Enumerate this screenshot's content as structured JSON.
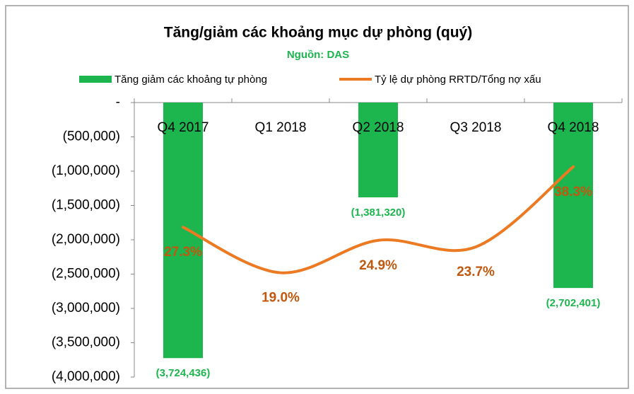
{
  "chart_data": {
    "type": "bar",
    "title": "Tăng/giảm các khoảng mục dự phòng (quý)",
    "subtitle": "Nguồn: DAS",
    "categories": [
      "Q4 2017",
      "Q1 2018",
      "Q2 2018",
      "Q3 2018",
      "Q4 2018"
    ],
    "series": [
      {
        "name": "Tăng giảm các khoảng tự phòng",
        "type": "bar",
        "color": "#1db54e",
        "values": [
          -3724436,
          0,
          -1381320,
          0,
          -2702401
        ],
        "value_labels": [
          "(3,724,436)",
          null,
          "(1,381,320)",
          null,
          "(2,702,401)"
        ]
      },
      {
        "name": "Tỷ lệ dự phòng RRTD/Tổng nợ xấu",
        "type": "line",
        "axis": "y2",
        "color": "#ec7a22",
        "values": [
          27.3,
          19.0,
          24.9,
          23.7,
          38.3
        ],
        "value_labels": [
          "27.3%",
          "19.0%",
          "24.9%",
          "23.7%",
          "38.3%"
        ]
      }
    ],
    "ylim": [
      -4000000,
      0
    ],
    "yticks": [
      {
        "value": 0,
        "label": "-"
      },
      {
        "value": -500000,
        "label": "(500,000)"
      },
      {
        "value": -1000000,
        "label": "(1,000,000)"
      },
      {
        "value": -1500000,
        "label": "(1,500,000)"
      },
      {
        "value": -2000000,
        "label": "(2,000,000)"
      },
      {
        "value": -2500000,
        "label": "(2,500,000)"
      },
      {
        "value": -3000000,
        "label": "(3,000,000)"
      },
      {
        "value": -3500000,
        "label": "(3,500,000)"
      },
      {
        "value": -4000000,
        "label": "(4,000,000)"
      }
    ],
    "y2lim": [
      0,
      50
    ],
    "legend": "top"
  }
}
